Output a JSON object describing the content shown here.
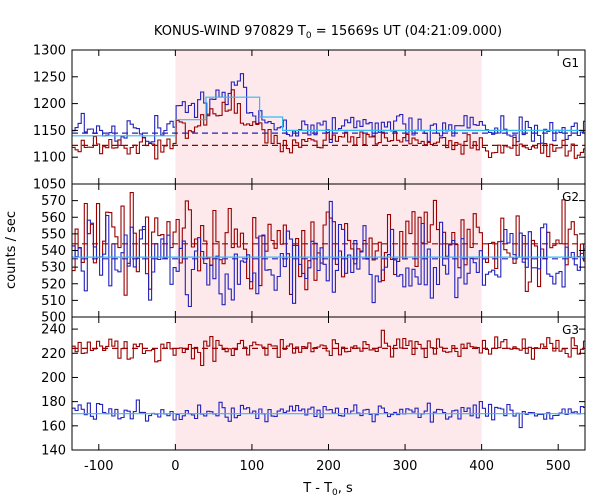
{
  "colors": {
    "highlight": "#fde8ec",
    "red_series": "#9b0000",
    "blue_series": "#2222bb",
    "cyan_fit": "#33bbee",
    "frame": "#000000"
  },
  "chart_data": {
    "type": "line",
    "title_main": "KONUS-WIND 970829 T",
    "title_sub": "0",
    "title_rest": " = 15669s UT (04:21:09.000)",
    "xlabel_main": "T - T",
    "xlabel_sub": "0",
    "xlabel_rest": ", s",
    "ylabel": "counts / sec",
    "xlim": [
      -135,
      535
    ],
    "xticks": [
      -100,
      0,
      100,
      200,
      300,
      400,
      500
    ],
    "highlight_interval": [
      0,
      400
    ],
    "bin_width": 4,
    "panels": [
      {
        "label": "G1",
        "ylim": [
          1050,
          1300
        ],
        "yticks": [
          1050,
          1100,
          1150,
          1200,
          1250,
          1300
        ],
        "series": [
          {
            "color": "blue",
            "baseline": 1145,
            "noise": 14,
            "bumps": [
              [
                0,
                115,
                1210
              ],
              [
                68,
                90,
                1240
              ],
              [
                115,
                400,
                1160
              ],
              [
                400,
                535,
                1150
              ]
            ]
          },
          {
            "color": "red",
            "baseline": 1122,
            "noise": 10,
            "bumps": [
              [
                0,
                115,
                1180
              ],
              [
                60,
                85,
                1205
              ],
              [
                115,
                400,
                1135
              ],
              [
                400,
                535,
                1115
              ]
            ]
          }
        ],
        "fits": [
          {
            "color": "cyan",
            "style": "solid",
            "segments": [
              [
                -135,
                0,
                1140
              ],
              [
                0,
                40,
                1170
              ],
              [
                40,
                110,
                1212
              ],
              [
                110,
                140,
                1175
              ],
              [
                140,
                400,
                1150
              ],
              [
                400,
                535,
                1150
              ]
            ]
          },
          {
            "color": "blue",
            "style": "dashed",
            "segments": [
              [
                -135,
                535,
                1145
              ]
            ]
          },
          {
            "color": "red",
            "style": "dashed",
            "segments": [
              [
                -135,
                535,
                1122
              ]
            ]
          }
        ]
      },
      {
        "label": "G2",
        "ylim": [
          500,
          580
        ],
        "yticks": [
          500,
          510,
          520,
          530,
          540,
          550,
          560,
          570
        ],
        "series": [
          {
            "color": "red",
            "baseline": 544,
            "noise": 13,
            "bumps": []
          },
          {
            "color": "blue",
            "baseline": 535,
            "noise": 12,
            "bumps": []
          }
        ],
        "fits": [
          {
            "color": "cyan",
            "style": "solid",
            "segments": [
              [
                -135,
                535,
                536
              ]
            ]
          },
          {
            "color": "red",
            "style": "dashed",
            "segments": [
              [
                -135,
                535,
                544
              ]
            ]
          },
          {
            "color": "blue",
            "style": "dashed",
            "segments": [
              [
                -135,
                535,
                535
              ]
            ]
          }
        ]
      },
      {
        "label": "G3",
        "ylim": [
          140,
          250
        ],
        "yticks": [
          140,
          160,
          180,
          200,
          220,
          240
        ],
        "series": [
          {
            "color": "red",
            "baseline": 224,
            "noise": 5,
            "bumps": []
          },
          {
            "color": "blue",
            "baseline": 171,
            "noise": 4,
            "bumps": []
          }
        ],
        "fits": [
          {
            "color": "red",
            "style": "dashed",
            "segments": [
              [
                -135,
                535,
                224
              ]
            ]
          },
          {
            "color": "cyan",
            "style": "solid",
            "segments": [
              [
                -135,
                535,
                170
              ]
            ]
          }
        ]
      }
    ]
  }
}
